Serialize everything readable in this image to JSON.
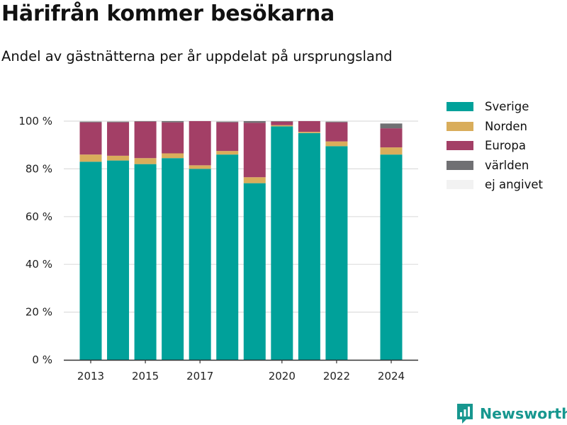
{
  "title": "Härifrån kommer besökarna",
  "subtitle": "Andel av gästnätterna per år uppdelat på ursprungsland",
  "brand": {
    "name": "Newsworthy",
    "icon": "newsworthy-logo-icon"
  },
  "chart_data": {
    "type": "bar",
    "stacked": true,
    "x": [
      2013,
      2014,
      2015,
      2016,
      2017,
      2018,
      2019,
      2020,
      2021,
      2022,
      2024
    ],
    "xticks": [
      "2013",
      "2015",
      "2017",
      "2020",
      "2022",
      "2024"
    ],
    "yticks": [
      "0 %",
      "20 %",
      "40 %",
      "60 %",
      "80 %",
      "100 %"
    ],
    "ylim": [
      0,
      100
    ],
    "grid": "horizontal",
    "legend_position": "right",
    "series": [
      {
        "name": "Sverige",
        "color": "#00a19a",
        "values": [
          83.0,
          83.5,
          82.0,
          84.5,
          80.0,
          86.0,
          74.0,
          97.8,
          95.0,
          89.5,
          86.0
        ]
      },
      {
        "name": "Norden",
        "color": "#d9ad5b",
        "values": [
          3.0,
          2.0,
          2.5,
          2.0,
          1.5,
          1.5,
          2.5,
          0.5,
          0.5,
          2.0,
          3.0
        ]
      },
      {
        "name": "Europa",
        "color": "#a33f66",
        "values": [
          13.5,
          14.0,
          15.3,
          13.0,
          18.5,
          12.0,
          22.8,
          1.5,
          4.5,
          8.0,
          8.0
        ]
      },
      {
        "name": "världen",
        "color": "#707073",
        "values": [
          0.3,
          0.3,
          0.2,
          0.5,
          0.0,
          0.3,
          0.7,
          0.2,
          0.0,
          0.3,
          2.0
        ]
      },
      {
        "name": "ej angivet",
        "color": "#f2f2f2",
        "values": [
          0,
          0,
          0,
          0,
          0,
          0,
          0,
          0,
          0,
          0,
          0
        ]
      }
    ]
  }
}
